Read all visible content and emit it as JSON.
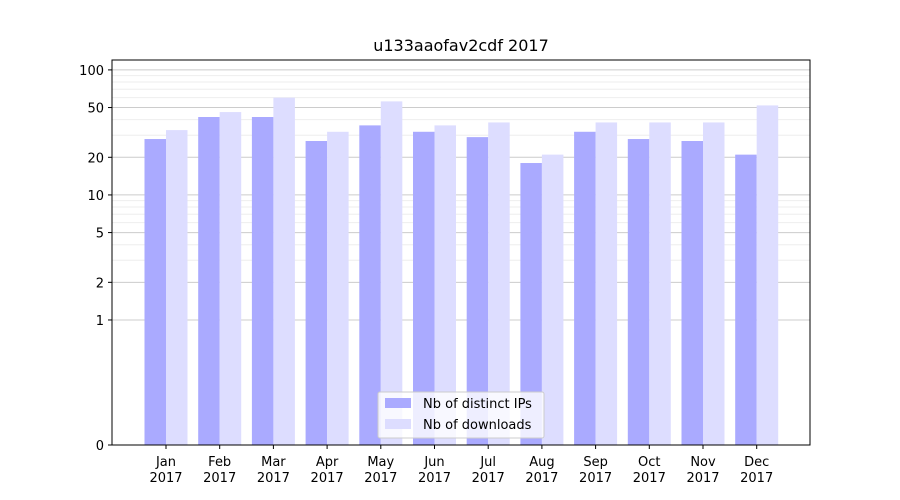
{
  "chart_data": {
    "type": "bar",
    "title": "u133aaofav2cdf 2017",
    "xlabel": "",
    "ylabel": "",
    "y_scale": "symlog",
    "ylim": [
      0,
      120
    ],
    "y_ticks": [
      0,
      1,
      2,
      5,
      10,
      20,
      50,
      100
    ],
    "y_tick_labels": [
      "0",
      "1",
      "2",
      "5",
      "10",
      "20",
      "50",
      "100"
    ],
    "categories": [
      "Jan",
      "Feb",
      "Mar",
      "Apr",
      "May",
      "Jun",
      "Jul",
      "Aug",
      "Sep",
      "Oct",
      "Nov",
      "Dec"
    ],
    "category_year": "2017",
    "series": [
      {
        "name": "Nb of distinct IPs",
        "color": "#aaaaff",
        "values": [
          28,
          42,
          42,
          27,
          36,
          32,
          29,
          18,
          32,
          28,
          27,
          21
        ]
      },
      {
        "name": "Nb of downloads",
        "color": "#ddddff",
        "values": [
          33,
          46,
          60,
          32,
          56,
          36,
          38,
          21,
          38,
          38,
          38,
          52
        ]
      }
    ],
    "grid": true,
    "legend_position": "lower-center"
  }
}
